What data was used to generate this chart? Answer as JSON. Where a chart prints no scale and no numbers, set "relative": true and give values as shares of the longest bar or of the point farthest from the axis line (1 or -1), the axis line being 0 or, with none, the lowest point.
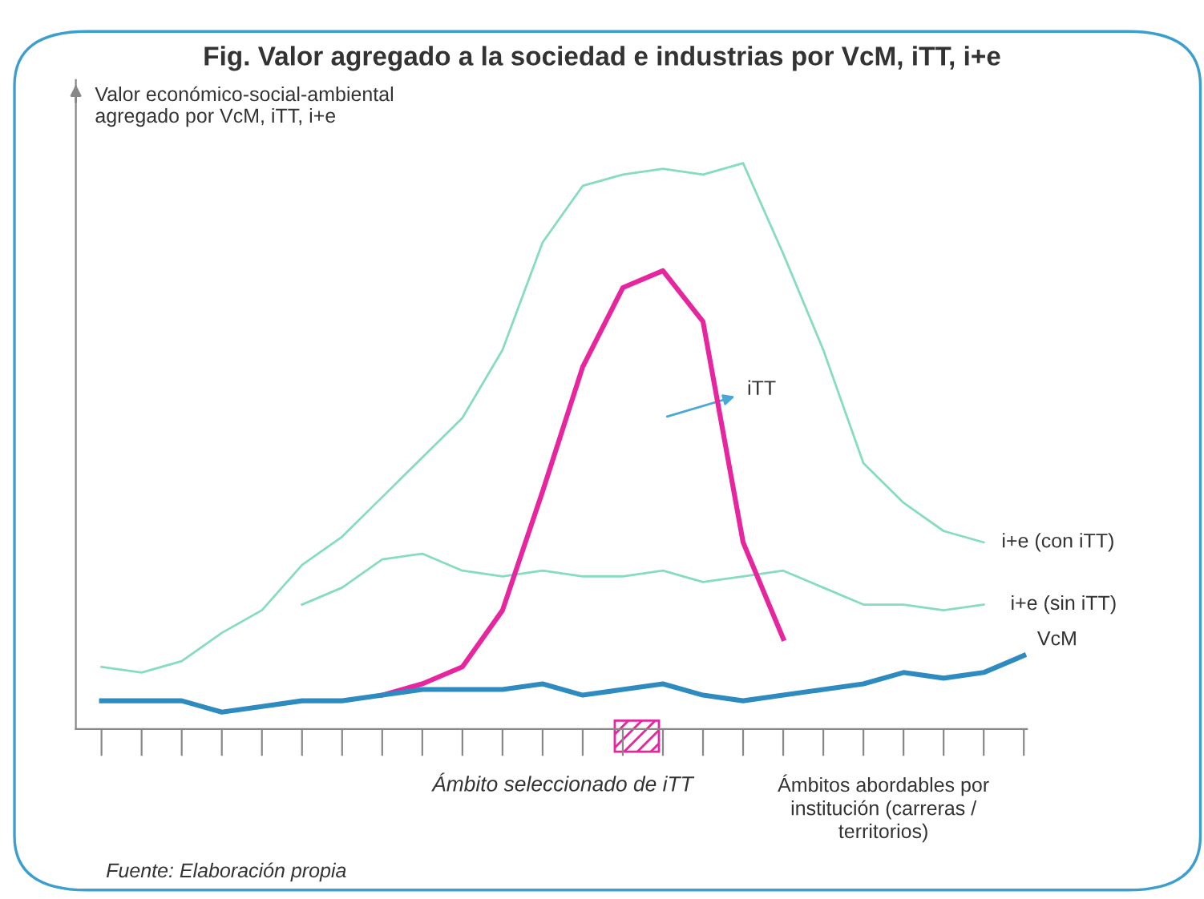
{
  "chart_data": {
    "type": "line",
    "relative": true,
    "title": "Fig. Valor agregado a la sociedad e industrias por VcM, iTT, i+e",
    "ylabel": "Valor económico-social-ambiental\nagregado por VcM, iTT, i+e",
    "annotations": [
      "Ámbito seleccionado de iTT",
      "Ámbitos abordables por\ninstitución (carreras /\nterritorios)",
      "Fuente: Elaboración propia"
    ],
    "categories": [
      null,
      null,
      null,
      null,
      null,
      null,
      null,
      null,
      null,
      null,
      null,
      null,
      null,
      null,
      null,
      null,
      null,
      null,
      null,
      null,
      null,
      null,
      null,
      null
    ],
    "grid": false,
    "legend": false,
    "marker": "none",
    "line_style": "solid",
    "series": [
      {
        "name": "i+e (con iTT)",
        "color": "#86dcc0",
        "values": [
          0.11,
          0.1,
          0.12,
          0.17,
          0.21,
          0.29,
          0.34,
          0.41,
          0.48,
          0.55,
          0.67,
          0.86,
          0.96,
          0.98,
          0.99,
          0.98,
          1.0,
          0.84,
          0.67,
          0.47,
          0.4,
          0.35,
          0.33,
          null
        ]
      },
      {
        "name": "i+e (sin iTT)",
        "color": "#86dcc0",
        "values": [
          null,
          null,
          null,
          null,
          null,
          0.22,
          0.25,
          0.3,
          0.31,
          0.28,
          0.27,
          0.28,
          0.27,
          0.27,
          0.28,
          0.26,
          0.27,
          0.28,
          0.25,
          0.22,
          0.22,
          0.21,
          0.22,
          null
        ]
      },
      {
        "name": "iTT",
        "color": "#e6259e",
        "values": [
          null,
          null,
          null,
          null,
          null,
          null,
          null,
          0.06,
          0.08,
          0.11,
          0.21,
          0.42,
          0.64,
          0.78,
          0.81,
          0.72,
          0.33,
          0.16,
          null,
          null,
          null,
          null,
          null,
          null
        ]
      },
      {
        "name": "VcM",
        "color": "#2e8bc0",
        "values": [
          0.05,
          0.05,
          0.05,
          0.03,
          0.04,
          0.05,
          0.05,
          0.06,
          0.07,
          0.07,
          0.07,
          0.08,
          0.06,
          0.07,
          0.08,
          0.06,
          0.05,
          0.06,
          0.07,
          0.08,
          0.1,
          0.09,
          0.1,
          0.13
        ]
      }
    ]
  }
}
